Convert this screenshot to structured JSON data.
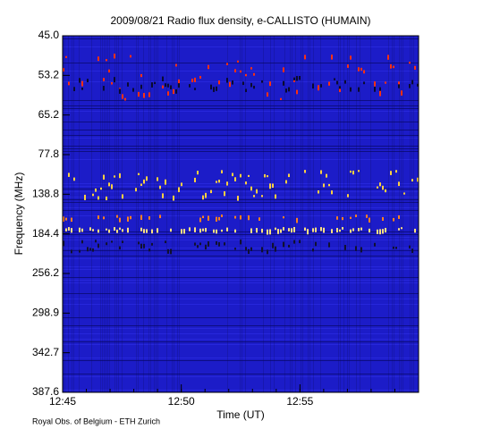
{
  "chart_data": {
    "type": "spectrogram",
    "title": "2009/08/21  Radio flux density, e-CALLISTO (HUMAIN)",
    "x_label": "Time (UT)",
    "y_label": "Frequency (MHz)",
    "credit": "Royal Obs. of Belgium - ETH Zurich",
    "xlim": [
      "12:45",
      "13:00"
    ],
    "xticks": [
      "12:45",
      "12:50",
      "12:55"
    ],
    "yticks": [
      {
        "value": 45,
        "label": "45.0"
      },
      {
        "value": 53.2,
        "label": "53.2"
      },
      {
        "value": 65.2,
        "label": "65.2"
      },
      {
        "value": 77.8,
        "label": "77.8"
      },
      {
        "value": 138.8,
        "label": "138.8"
      },
      {
        "value": 184.4,
        "label": "184.4"
      },
      {
        "value": 256.2,
        "label": "256.2"
      },
      {
        "value": 298.9,
        "label": "298.9"
      },
      {
        "value": 342.7,
        "label": "342.7"
      },
      {
        "value": 387.6,
        "label": "387.6"
      }
    ]
  }
}
